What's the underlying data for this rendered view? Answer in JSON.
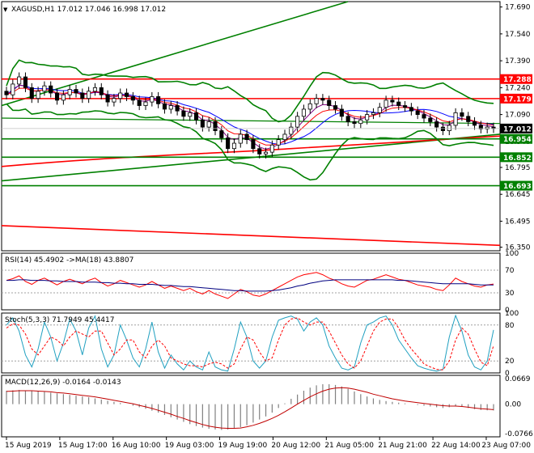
{
  "header": {
    "symbol_line": "XAGUSD,H1  17.012 17.046 16.998 17.012",
    "triangle": "▼"
  },
  "colors": {
    "candle_up": "#000000",
    "candle_down": "#000000",
    "bollinger": "#008000",
    "trend_green": "#008000",
    "level_red": "#ff0000",
    "ma_red": "#ff0000",
    "ma_blue": "#0000ff",
    "ma_purple": "#800080",
    "rsi_main": "#ff0000",
    "rsi_signal": "#000080",
    "stoch_main": "#20a0c0",
    "stoch_signal": "#ff0000",
    "macd_hist": "#808080",
    "macd_signal": "#c00000",
    "current_price_tag": "#000000",
    "level_tag_red": "#ff0000",
    "level_tag_green": "#008000"
  },
  "chart_data": {
    "type": "candlestick",
    "main": {
      "y_ticks": [
        "17.690",
        "17.540",
        "17.390",
        "17.240",
        "17.090",
        "16.940",
        "16.795",
        "16.645",
        "16.495",
        "16.350"
      ],
      "ylim": [
        16.33,
        17.72
      ],
      "current_price": "17.012",
      "levels": [
        {
          "label": "17.288",
          "value": 17.288,
          "color": "red"
        },
        {
          "label": "17.179",
          "value": 17.179,
          "color": "red"
        },
        {
          "label": "16.954",
          "value": 16.954,
          "color": "green"
        },
        {
          "label": "16.852",
          "value": 16.852,
          "color": "green"
        },
        {
          "label": "16.693",
          "value": 16.693,
          "color": "green"
        }
      ],
      "close": [
        17.2,
        17.26,
        17.3,
        17.24,
        17.18,
        17.22,
        17.25,
        17.21,
        17.17,
        17.2,
        17.23,
        17.21,
        17.18,
        17.22,
        17.24,
        17.2,
        17.16,
        17.18,
        17.21,
        17.19,
        17.17,
        17.14,
        17.16,
        17.19,
        17.15,
        17.12,
        17.14,
        17.11,
        17.08,
        17.1,
        17.06,
        17.02,
        17.05,
        17.0,
        16.96,
        16.9,
        16.93,
        16.98,
        16.95,
        16.9,
        16.87,
        16.88,
        16.92,
        16.95,
        16.98,
        17.02,
        17.08,
        17.12,
        17.15,
        17.18,
        17.17,
        17.14,
        17.12,
        17.08,
        17.05,
        17.04,
        17.06,
        17.09,
        17.1,
        17.13,
        17.17,
        17.16,
        17.14,
        17.13,
        17.11,
        17.09,
        17.07,
        17.05,
        17.02,
        17.0,
        17.03,
        17.1,
        17.08,
        17.05,
        17.03,
        17.01,
        17.02,
        17.012
      ]
    },
    "rsi": {
      "label": "RSI(14) 45.4902  ->MA(18) 43.8807",
      "y_ticks": [
        "100",
        "70",
        "30",
        "0"
      ],
      "ylim": [
        0,
        100
      ],
      "levels": [
        70,
        30
      ],
      "rsi": [
        52,
        55,
        60,
        50,
        45,
        52,
        56,
        50,
        44,
        50,
        54,
        50,
        46,
        52,
        56,
        48,
        42,
        46,
        52,
        48,
        44,
        40,
        44,
        50,
        44,
        38,
        42,
        38,
        34,
        38,
        32,
        28,
        34,
        28,
        24,
        20,
        28,
        36,
        32,
        26,
        24,
        28,
        34,
        40,
        46,
        52,
        58,
        62,
        64,
        66,
        62,
        56,
        52,
        46,
        42,
        40,
        46,
        52,
        54,
        58,
        62,
        58,
        54,
        52,
        48,
        44,
        42,
        40,
        36,
        34,
        44,
        56,
        50,
        46,
        42,
        40,
        44,
        45.5
      ],
      "ma": [
        52,
        52,
        53,
        53,
        52,
        52,
        52,
        51,
        51,
        50,
        50,
        50,
        49,
        49,
        49,
        48,
        48,
        47,
        47,
        46,
        46,
        45,
        45,
        45,
        44,
        43,
        43,
        42,
        41,
        41,
        40,
        39,
        38,
        37,
        36,
        35,
        34,
        34,
        33,
        33,
        33,
        33,
        34,
        35,
        37,
        39,
        42,
        44,
        47,
        49,
        51,
        52,
        53,
        53,
        53,
        53,
        53,
        53,
        53,
        53,
        53,
        53,
        52,
        52,
        51,
        50,
        49,
        48,
        47,
        46,
        46,
        46,
        46,
        46,
        45,
        44,
        44,
        43.9
      ]
    },
    "stoch": {
      "label": "Stoch(5,3,3) 71.7949 45.4417",
      "y_ticks": [
        "100",
        "80",
        "20",
        "0"
      ],
      "ylim": [
        0,
        100
      ],
      "levels": [
        80,
        20
      ],
      "main": [
        80,
        92,
        70,
        30,
        10,
        40,
        85,
        60,
        20,
        50,
        90,
        70,
        30,
        75,
        95,
        40,
        10,
        30,
        80,
        55,
        25,
        10,
        40,
        85,
        35,
        8,
        30,
        15,
        5,
        20,
        10,
        5,
        35,
        10,
        5,
        3,
        40,
        85,
        60,
        20,
        8,
        20,
        60,
        88,
        92,
        95,
        90,
        70,
        85,
        92,
        80,
        45,
        25,
        8,
        5,
        10,
        50,
        80,
        85,
        92,
        95,
        80,
        55,
        40,
        25,
        12,
        8,
        5,
        3,
        6,
        60,
        96,
        70,
        30,
        10,
        5,
        20,
        71.8
      ],
      "signal": [
        75,
        82,
        80,
        65,
        40,
        30,
        45,
        60,
        55,
        45,
        60,
        70,
        65,
        60,
        70,
        70,
        50,
        30,
        40,
        55,
        55,
        35,
        25,
        45,
        55,
        45,
        25,
        20,
        15,
        12,
        12,
        10,
        15,
        18,
        15,
        8,
        15,
        40,
        60,
        55,
        35,
        20,
        25,
        55,
        80,
        90,
        92,
        85,
        80,
        85,
        85,
        70,
        50,
        30,
        15,
        8,
        20,
        45,
        70,
        85,
        90,
        90,
        75,
        55,
        40,
        28,
        15,
        10,
        6,
        5,
        20,
        55,
        75,
        65,
        40,
        18,
        12,
        45.4
      ]
    },
    "macd": {
      "label": "MACD(12,26,9) -0.0164 -0.0143",
      "y_ticks": [
        "0.0669",
        "0.00",
        "-0.0766"
      ],
      "ylim": [
        -0.085,
        0.075
      ],
      "histogram": [
        0.035,
        0.036,
        0.037,
        0.036,
        0.034,
        0.033,
        0.032,
        0.03,
        0.028,
        0.026,
        0.024,
        0.022,
        0.02,
        0.018,
        0.015,
        0.012,
        0.009,
        0.006,
        0.003,
        0.0,
        -0.004,
        -0.008,
        -0.012,
        -0.017,
        -0.022,
        -0.028,
        -0.034,
        -0.04,
        -0.046,
        -0.052,
        -0.057,
        -0.061,
        -0.064,
        -0.066,
        -0.067,
        -0.066,
        -0.064,
        -0.06,
        -0.055,
        -0.048,
        -0.04,
        -0.032,
        -0.022,
        -0.01,
        0.002,
        0.014,
        0.025,
        0.035,
        0.043,
        0.049,
        0.052,
        0.052,
        0.05,
        0.046,
        0.04,
        0.033,
        0.026,
        0.02,
        0.015,
        0.011,
        0.008,
        0.006,
        0.004,
        0.002,
        0.0,
        -0.002,
        -0.004,
        -0.006,
        -0.008,
        -0.01,
        -0.008,
        -0.004,
        -0.006,
        -0.01,
        -0.013,
        -0.015,
        -0.016,
        -0.0164
      ],
      "signal": [
        0.033,
        0.034,
        0.035,
        0.035,
        0.035,
        0.034,
        0.033,
        0.032,
        0.03,
        0.029,
        0.027,
        0.025,
        0.023,
        0.021,
        0.019,
        0.016,
        0.013,
        0.01,
        0.007,
        0.004,
        0.001,
        -0.003,
        -0.007,
        -0.011,
        -0.016,
        -0.021,
        -0.026,
        -0.032,
        -0.037,
        -0.043,
        -0.048,
        -0.053,
        -0.057,
        -0.06,
        -0.062,
        -0.063,
        -0.063,
        -0.062,
        -0.059,
        -0.055,
        -0.05,
        -0.044,
        -0.037,
        -0.029,
        -0.02,
        -0.01,
        0.0,
        0.01,
        0.019,
        0.027,
        0.034,
        0.039,
        0.042,
        0.043,
        0.042,
        0.039,
        0.035,
        0.031,
        0.026,
        0.022,
        0.018,
        0.014,
        0.011,
        0.008,
        0.006,
        0.004,
        0.002,
        0.0,
        -0.002,
        -0.004,
        -0.005,
        -0.005,
        -0.006,
        -0.008,
        -0.01,
        -0.012,
        -0.013,
        -0.0143
      ]
    },
    "x_ticks": [
      "15 Aug 2019",
      "15 Aug 17:00",
      "16 Aug 10:00",
      "19 Aug 03:00",
      "19 Aug 19:00",
      "20 Aug 12:00",
      "21 Aug 05:00",
      "21 Aug 21:00",
      "22 Aug 14:00",
      "23 Aug 07:00"
    ]
  }
}
